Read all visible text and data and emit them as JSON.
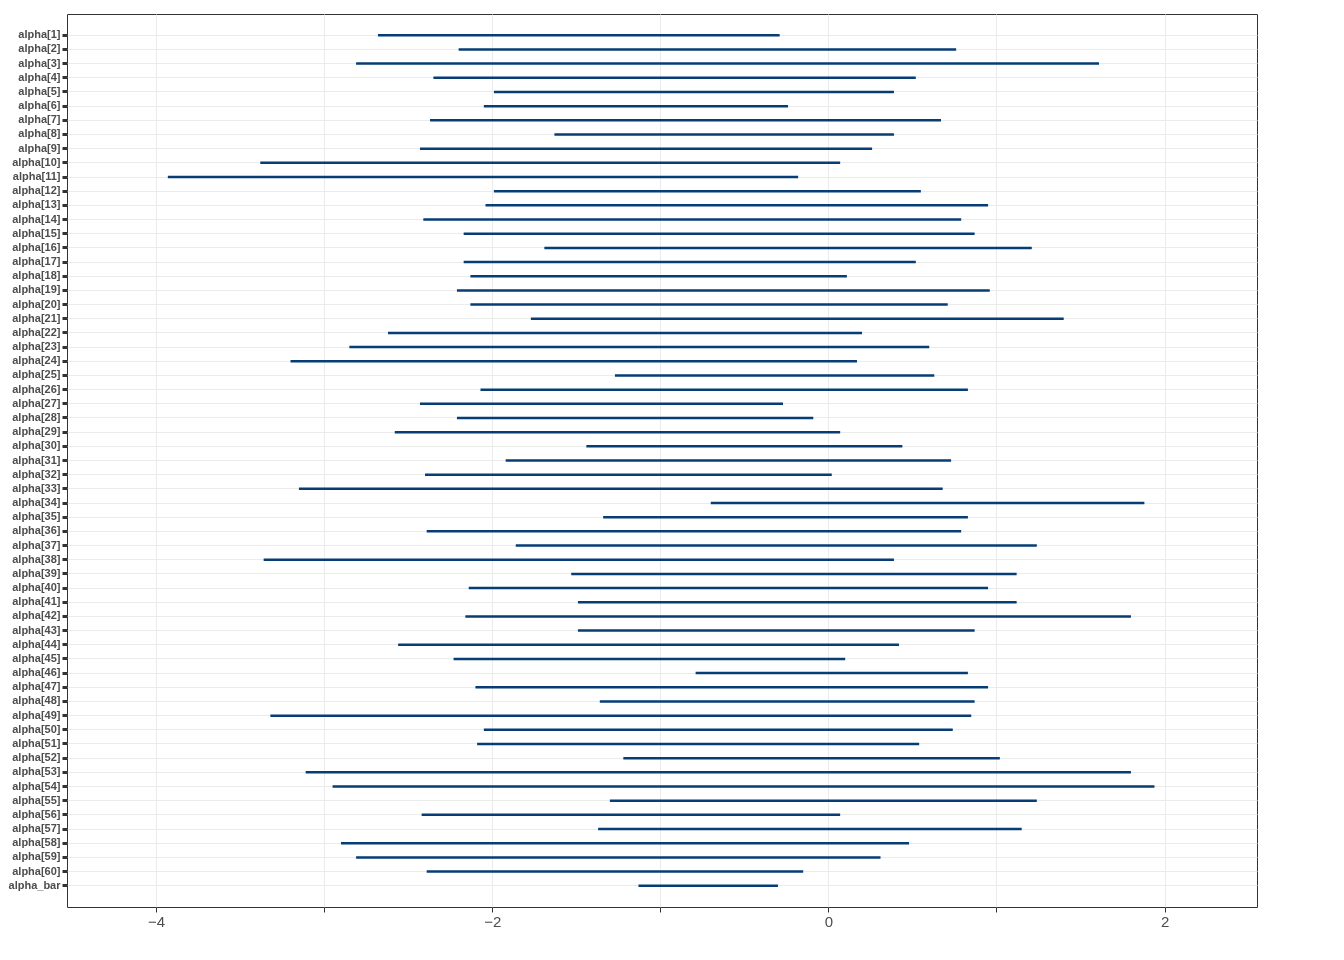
{
  "chart_data": {
    "type": "bar",
    "orientation": "horizontal",
    "color": "#063d74",
    "grid": true,
    "categories": [
      "alpha[1]",
      "alpha[2]",
      "alpha[3]",
      "alpha[4]",
      "alpha[5]",
      "alpha[6]",
      "alpha[7]",
      "alpha[8]",
      "alpha[9]",
      "alpha[10]",
      "alpha[11]",
      "alpha[12]",
      "alpha[13]",
      "alpha[14]",
      "alpha[15]",
      "alpha[16]",
      "alpha[17]",
      "alpha[18]",
      "alpha[19]",
      "alpha[20]",
      "alpha[21]",
      "alpha[22]",
      "alpha[23]",
      "alpha[24]",
      "alpha[25]",
      "alpha[26]",
      "alpha[27]",
      "alpha[28]",
      "alpha[29]",
      "alpha[30]",
      "alpha[31]",
      "alpha[32]",
      "alpha[33]",
      "alpha[34]",
      "alpha[35]",
      "alpha[36]",
      "alpha[37]",
      "alpha[38]",
      "alpha[39]",
      "alpha[40]",
      "alpha[41]",
      "alpha[42]",
      "alpha[43]",
      "alpha[44]",
      "alpha[45]",
      "alpha[46]",
      "alpha[47]",
      "alpha[48]",
      "alpha[49]",
      "alpha[50]",
      "alpha[51]",
      "alpha[52]",
      "alpha[53]",
      "alpha[54]",
      "alpha[55]",
      "alpha[56]",
      "alpha[57]",
      "alpha[58]",
      "alpha[59]",
      "alpha[60]",
      "alpha_bar"
    ],
    "base": [
      -2.68,
      -2.2,
      -2.81,
      -2.35,
      -1.99,
      -2.05,
      -2.37,
      -1.63,
      -2.43,
      -3.38,
      -3.93,
      -1.99,
      -2.04,
      -2.41,
      -2.17,
      -1.69,
      -2.17,
      -2.13,
      -2.21,
      -2.13,
      -1.77,
      -2.62,
      -2.85,
      -3.2,
      -1.27,
      -2.07,
      -2.43,
      -2.21,
      -2.58,
      -1.44,
      -1.92,
      -2.4,
      -3.15,
      -0.7,
      -1.34,
      -2.39,
      -1.86,
      -3.36,
      -1.53,
      -2.14,
      -1.49,
      -2.16,
      -1.49,
      -2.56,
      -2.23,
      -0.79,
      -2.1,
      -1.36,
      -3.32,
      -2.05,
      -2.09,
      -1.22,
      -3.11,
      -2.95,
      -1.3,
      -2.42,
      -1.37,
      -2.9,
      -2.81,
      -2.39,
      -1.13
    ],
    "values": [
      2.39,
      2.96,
      4.42,
      2.87,
      2.38,
      1.81,
      3.04,
      2.02,
      2.69,
      3.45,
      3.75,
      2.54,
      2.99,
      3.2,
      3.04,
      2.9,
      2.69,
      2.24,
      3.17,
      2.84,
      3.17,
      2.82,
      3.45,
      3.37,
      1.9,
      2.9,
      2.16,
      2.12,
      2.65,
      1.88,
      2.65,
      2.42,
      3.83,
      2.58,
      2.17,
      3.18,
      3.1,
      3.75,
      2.65,
      3.09,
      2.61,
      3.96,
      2.36,
      2.98,
      2.33,
      1.62,
      3.05,
      2.23,
      4.17,
      2.79,
      2.63,
      2.24,
      4.91,
      4.89,
      2.54,
      2.49,
      2.52,
      3.38,
      3.12,
      2.24,
      0.83
    ],
    "xlim": [
      -4.53,
      2.55
    ],
    "xticks": [
      -4,
      {
        "value": -3,
        "label": null
      },
      -2,
      {
        "value": -1,
        "label": null
      },
      0,
      {
        "value": 1,
        "label": null
      },
      2
    ]
  }
}
